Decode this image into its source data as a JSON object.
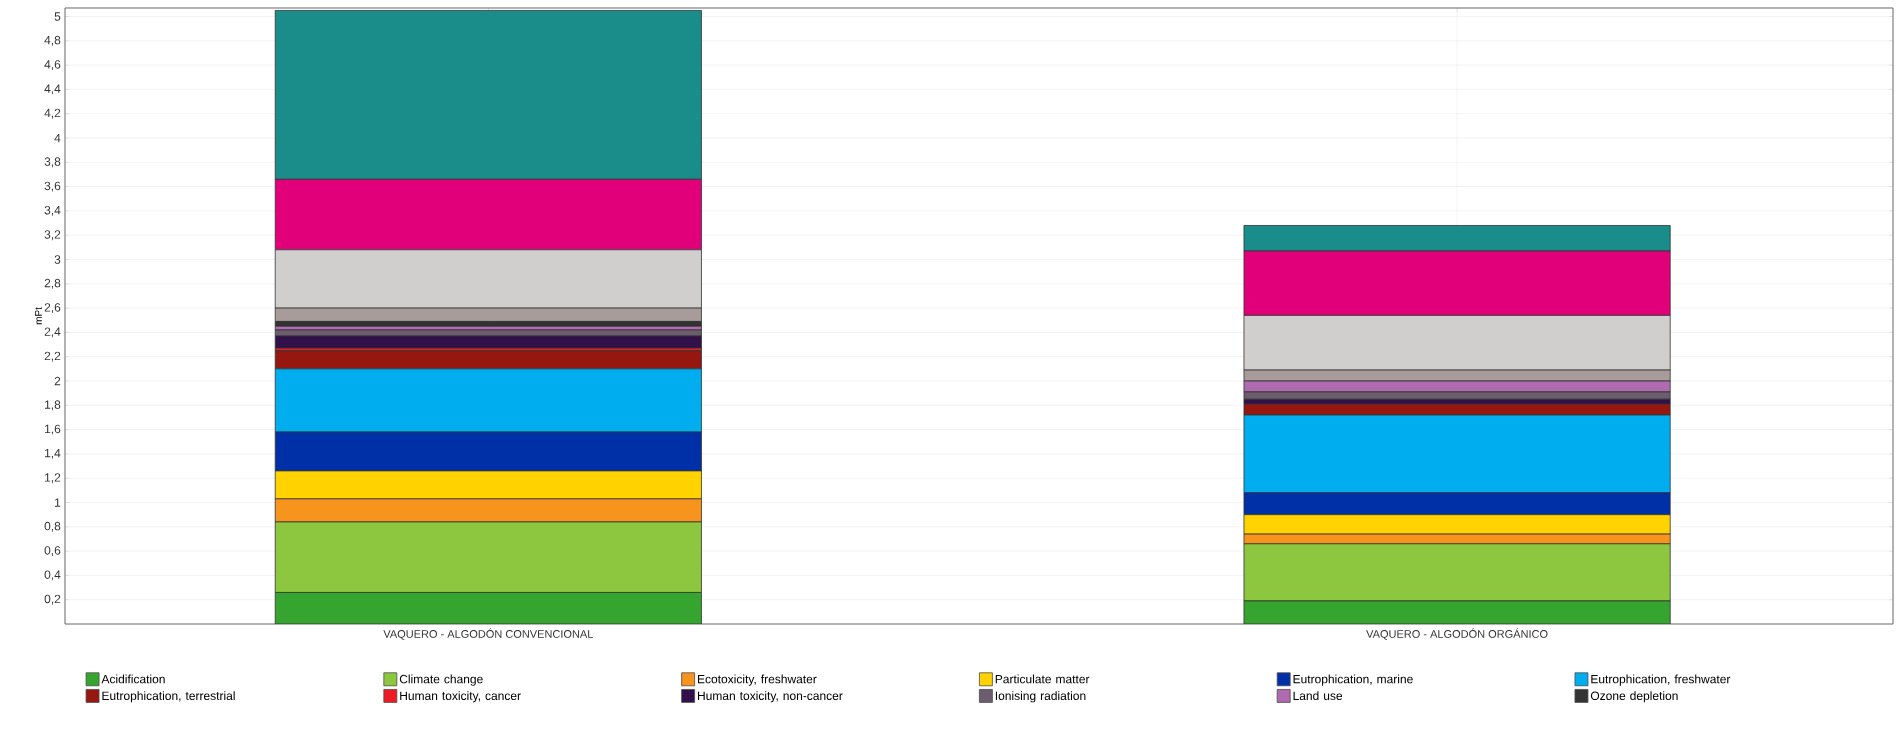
{
  "chart_data": {
    "type": "bar",
    "stacked": true,
    "ylabel": "mPt",
    "categories": [
      "VAQUERO - ALGODÓN CONVENCIONAL",
      "VAQUERO - ALGODÓN ORGÁNICO"
    ],
    "series": [
      {
        "name": "Acidification",
        "color": "#35a530",
        "values": [
          0.26,
          0.19
        ]
      },
      {
        "name": "Climate change",
        "color": "#8dc63f",
        "values": [
          0.58,
          0.47
        ]
      },
      {
        "name": "Ecotoxicity, freshwater",
        "color": "#f7941d",
        "values": [
          0.19,
          0.08
        ]
      },
      {
        "name": "Particulate matter",
        "color": "#ffd200",
        "values": [
          0.23,
          0.16
        ]
      },
      {
        "name": "Eutrophication, marine",
        "color": "#0030a8",
        "values": [
          0.32,
          0.18
        ]
      },
      {
        "name": "Eutrophication, freshwater",
        "color": "#00aeef",
        "values": [
          0.52,
          0.64
        ]
      },
      {
        "name": "Eutrophication, terrestrial",
        "color": "#951710",
        "values": [
          0.15,
          0.09
        ]
      },
      {
        "name": "Human toxicity, cancer",
        "color": "#ed1c24",
        "values": [
          0.02,
          null
        ]
      },
      {
        "name": "Human toxicity, non-cancer",
        "color": "#32104a",
        "values": [
          0.1,
          0.04
        ]
      },
      {
        "name": "Ionising radiation",
        "color": "#6c5d6e",
        "values": [
          0.05,
          0.06
        ]
      },
      {
        "name": "Land use",
        "color": "#b06ab0",
        "values": [
          0.03,
          0.09
        ]
      },
      {
        "name": "Ozone depletion",
        "color": "#333333",
        "values": [
          0.04,
          null
        ]
      },
      {
        "color": "#a89c9a",
        "values": [
          0.11,
          0.09
        ]
      },
      {
        "color": "#d0cfcd",
        "values": [
          0.48,
          0.45
        ]
      },
      {
        "color": "#e2007a",
        "values": [
          0.58,
          0.53
        ]
      },
      {
        "color": "#1a8c8a",
        "values": [
          1.39,
          0.21
        ]
      }
    ],
    "ylim": [
      0,
      5.07
    ],
    "yticks": [
      {
        "value": 0.2,
        "label": "0,2"
      },
      {
        "value": 0.4,
        "label": "0,4"
      },
      {
        "value": 0.6,
        "label": "0,6"
      },
      {
        "value": 0.8,
        "label": "0,8"
      },
      1,
      {
        "value": 1.2,
        "label": "1,2"
      },
      {
        "value": 1.4,
        "label": "1,4"
      },
      {
        "value": 1.6,
        "label": "1,6"
      },
      {
        "value": 1.8,
        "label": "1,8"
      },
      2,
      {
        "value": 2.2,
        "label": "2,2"
      },
      {
        "value": 2.4,
        "label": "2,4"
      },
      {
        "value": 2.6,
        "label": "2,6"
      },
      {
        "value": 2.8,
        "label": "2,8"
      },
      3,
      {
        "value": 3.2,
        "label": "3,2"
      },
      {
        "value": 3.4,
        "label": "3,4"
      },
      {
        "value": 3.6,
        "label": "3,6"
      },
      {
        "value": 3.8,
        "label": "3,8"
      },
      4,
      {
        "value": 4.2,
        "label": "4,2"
      },
      {
        "value": 4.4,
        "label": "4,4"
      },
      {
        "value": 4.6,
        "label": "4,6"
      },
      {
        "value": 4.8,
        "label": "4,8"
      },
      5
    ],
    "grid": true,
    "legend": "bottom"
  }
}
